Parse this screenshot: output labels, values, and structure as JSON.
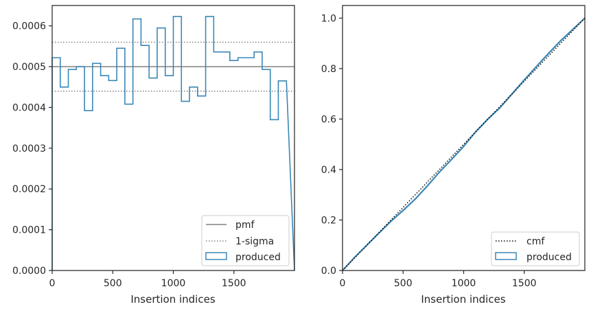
{
  "chart_data": [
    {
      "type": "step",
      "xlabel": "Insertion indices",
      "ylabel": "",
      "xlim": [
        0,
        2000
      ],
      "ylim": [
        0,
        0.00065
      ],
      "xticks": [
        0,
        500,
        1000,
        1500
      ],
      "xtick_labels": [
        "0",
        "500",
        "1000",
        "1500"
      ],
      "yticks": [
        0,
        0.0001,
        0.0002,
        0.0003,
        0.0004,
        0.0005,
        0.0006
      ],
      "ytick_labels": [
        "0.0000",
        "0.0001",
        "0.0002",
        "0.0003",
        "0.0004",
        "0.0005",
        "0.0006"
      ],
      "grid": false,
      "legend": {
        "position": "lower-right",
        "entries": [
          "pmf",
          "1-sigma",
          "produced"
        ]
      },
      "pmf": 0.0005,
      "sigma_band": [
        0.00044,
        0.00056
      ],
      "series": [
        {
          "name": "produced",
          "style": "step-histogram",
          "color": "#3a87b6",
          "bin_width": 66.67,
          "values": [
            0.000522,
            0.00045,
            0.000493,
            0.0005,
            0.000392,
            0.000508,
            0.000478,
            0.000466,
            0.000545,
            0.000408,
            0.000617,
            0.000552,
            0.000472,
            0.000595,
            0.000478,
            0.000623,
            0.000415,
            0.00045,
            0.000428,
            0.000623,
            0.000536,
            0.000536,
            0.000515,
            0.000522,
            0.000522,
            0.000536,
            0.000493,
            0.00037,
            0.000465
          ]
        }
      ]
    },
    {
      "type": "line",
      "xlabel": "Insertion indices",
      "ylabel": "",
      "xlim": [
        0,
        2000
      ],
      "ylim": [
        0,
        1.05
      ],
      "xticks": [
        0,
        500,
        1000,
        1500
      ],
      "xtick_labels": [
        "0",
        "500",
        "1000",
        "1500"
      ],
      "yticks": [
        0,
        0.2,
        0.4,
        0.6,
        0.8,
        1.0
      ],
      "ytick_labels": [
        "0.0",
        "0.2",
        "0.4",
        "0.6",
        "0.8",
        "1.0"
      ],
      "grid": false,
      "legend": {
        "position": "lower-right",
        "entries": [
          "cmf",
          "produced"
        ]
      },
      "series": [
        {
          "name": "cmf",
          "style": "dotted",
          "color": "#000000",
          "x": [
            0,
            2000
          ],
          "y": [
            0,
            1.0
          ]
        },
        {
          "name": "produced",
          "style": "solid",
          "color": "#3a87b6",
          "x": [
            0,
            100,
            200,
            300,
            400,
            500,
            600,
            700,
            800,
            900,
            1000,
            1100,
            1200,
            1300,
            1400,
            1500,
            1600,
            1700,
            1800,
            1900,
            2000
          ],
          "y": [
            0,
            0.052,
            0.1,
            0.148,
            0.195,
            0.238,
            0.283,
            0.335,
            0.39,
            0.44,
            0.492,
            0.55,
            0.6,
            0.645,
            0.7,
            0.755,
            0.808,
            0.86,
            0.91,
            0.955,
            1.0
          ]
        }
      ]
    }
  ]
}
